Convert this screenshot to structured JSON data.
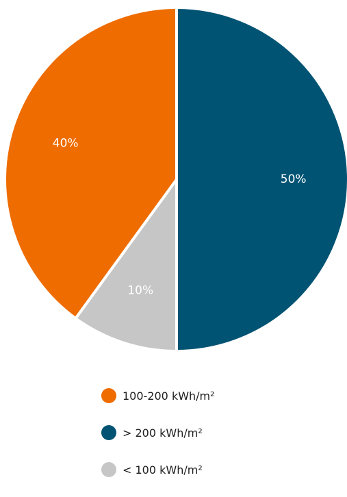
{
  "chart_data": {
    "type": "pie",
    "start_angle": "12 o'clock",
    "direction": "clockwise",
    "slices": [
      {
        "name": "> 200 kWh/m²",
        "value": 50,
        "label": "50%",
        "color": "#005373"
      },
      {
        "name": "< 100 kWh/m²",
        "value": 10,
        "label": "10%",
        "color": "#c6c6c6"
      },
      {
        "name": "100-200 kWh/m²",
        "value": 40,
        "label": "40%",
        "color": "#ee6c00"
      }
    ],
    "legend": {
      "placement": "bottom",
      "entries": [
        {
          "label": "100-200 kWh/m²",
          "color": "#ee6c00"
        },
        {
          "label": "> 200 kWh/m²",
          "color": "#005373"
        },
        {
          "label": "< 100 kWh/m²",
          "color": "#c6c6c6"
        }
      ]
    }
  }
}
